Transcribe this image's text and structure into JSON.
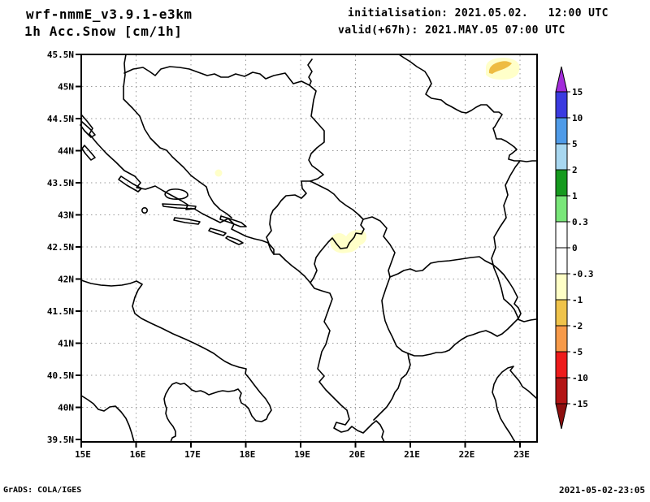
{
  "header": {
    "model": "wrf-nmmE_v3.9.1-e3km",
    "product": "1h Acc.Snow [cm/1h]",
    "init": "initialisation: 2021.05.02.   12:00 UTC",
    "valid": "valid(+67h): 2021.MAY.05 07:00 UTC"
  },
  "footer": {
    "left": "GrADS: COLA/IGES",
    "right": "2021-05-02-23:05"
  },
  "chart_data": {
    "type": "map",
    "subtype": "filled-contour accumulated snow map (GrADS)",
    "title": "1h Acc.Snow [cm/1h]",
    "model_run": "wrf-nmmE_v3.9.1-e3km",
    "region": "Adriatic / Balkans",
    "lon_range": [
      15,
      23.3
    ],
    "lat_range": [
      39.5,
      45.5
    ],
    "x_ticks": {
      "lons": [
        15,
        16,
        17,
        18,
        19,
        20,
        21,
        22,
        23
      ],
      "labels": [
        "15E",
        "16E",
        "17E",
        "18E",
        "19E",
        "20E",
        "21E",
        "22E",
        "23E"
      ]
    },
    "y_ticks": {
      "lats": [
        45.5,
        45,
        44.5,
        44,
        43.5,
        43,
        42.5,
        42,
        41.5,
        41,
        40.5,
        40,
        39.5
      ],
      "labels": [
        "45.5N",
        "45N",
        "44.5N",
        "44N",
        "43.5N",
        "43N",
        "42.5N",
        "42N",
        "41.5N",
        "41N",
        "40.5N",
        "40N",
        "39.5N"
      ]
    },
    "grid": {
      "lon_interval_deg": 1,
      "lat_interval_deg": 0.5,
      "style": "dashed gray"
    },
    "colorbar": {
      "units": "cm/1h",
      "labels": [
        "15",
        "10",
        "5",
        "2",
        "1",
        "0.3",
        "0",
        "-0.3",
        "-1",
        "-2",
        "-5",
        "-10",
        "-15"
      ],
      "boundaries": [
        15,
        10,
        5,
        2,
        1,
        0.3,
        0,
        -0.3,
        -1,
        -2,
        -5,
        -10,
        -15
      ],
      "segment_colors_top_to_bottom": [
        "#3b3be0",
        "#4f9be8",
        "#a8d7f0",
        "#169a1e",
        "#79e679",
        "#ffffff",
        "#ffffff",
        "#ffffc6",
        "#efc34b",
        "#f79a49",
        "#ee1b1b",
        "#b31515"
      ],
      "arrow_top_color": "#a22cda",
      "arrow_bottom_color": "#8d0f0f"
    },
    "colors": {
      "spot_pale": "#ffffc9",
      "spot_gold": "#eebc42",
      "land_line": "#000000",
      "grid_line": "#999999"
    },
    "snow_spots": [
      {
        "approx_lon": 22.65,
        "approx_lat": 45.25,
        "bin": "-1 to -2 core inside -0.3 to -1 halo"
      },
      {
        "approx_lon": 17.5,
        "approx_lat": 43.65,
        "bin": "-0.3 to -1"
      },
      {
        "approx_lon": 19.85,
        "approx_lat": 42.55,
        "bin": "-0.3 to -1"
      }
    ]
  }
}
